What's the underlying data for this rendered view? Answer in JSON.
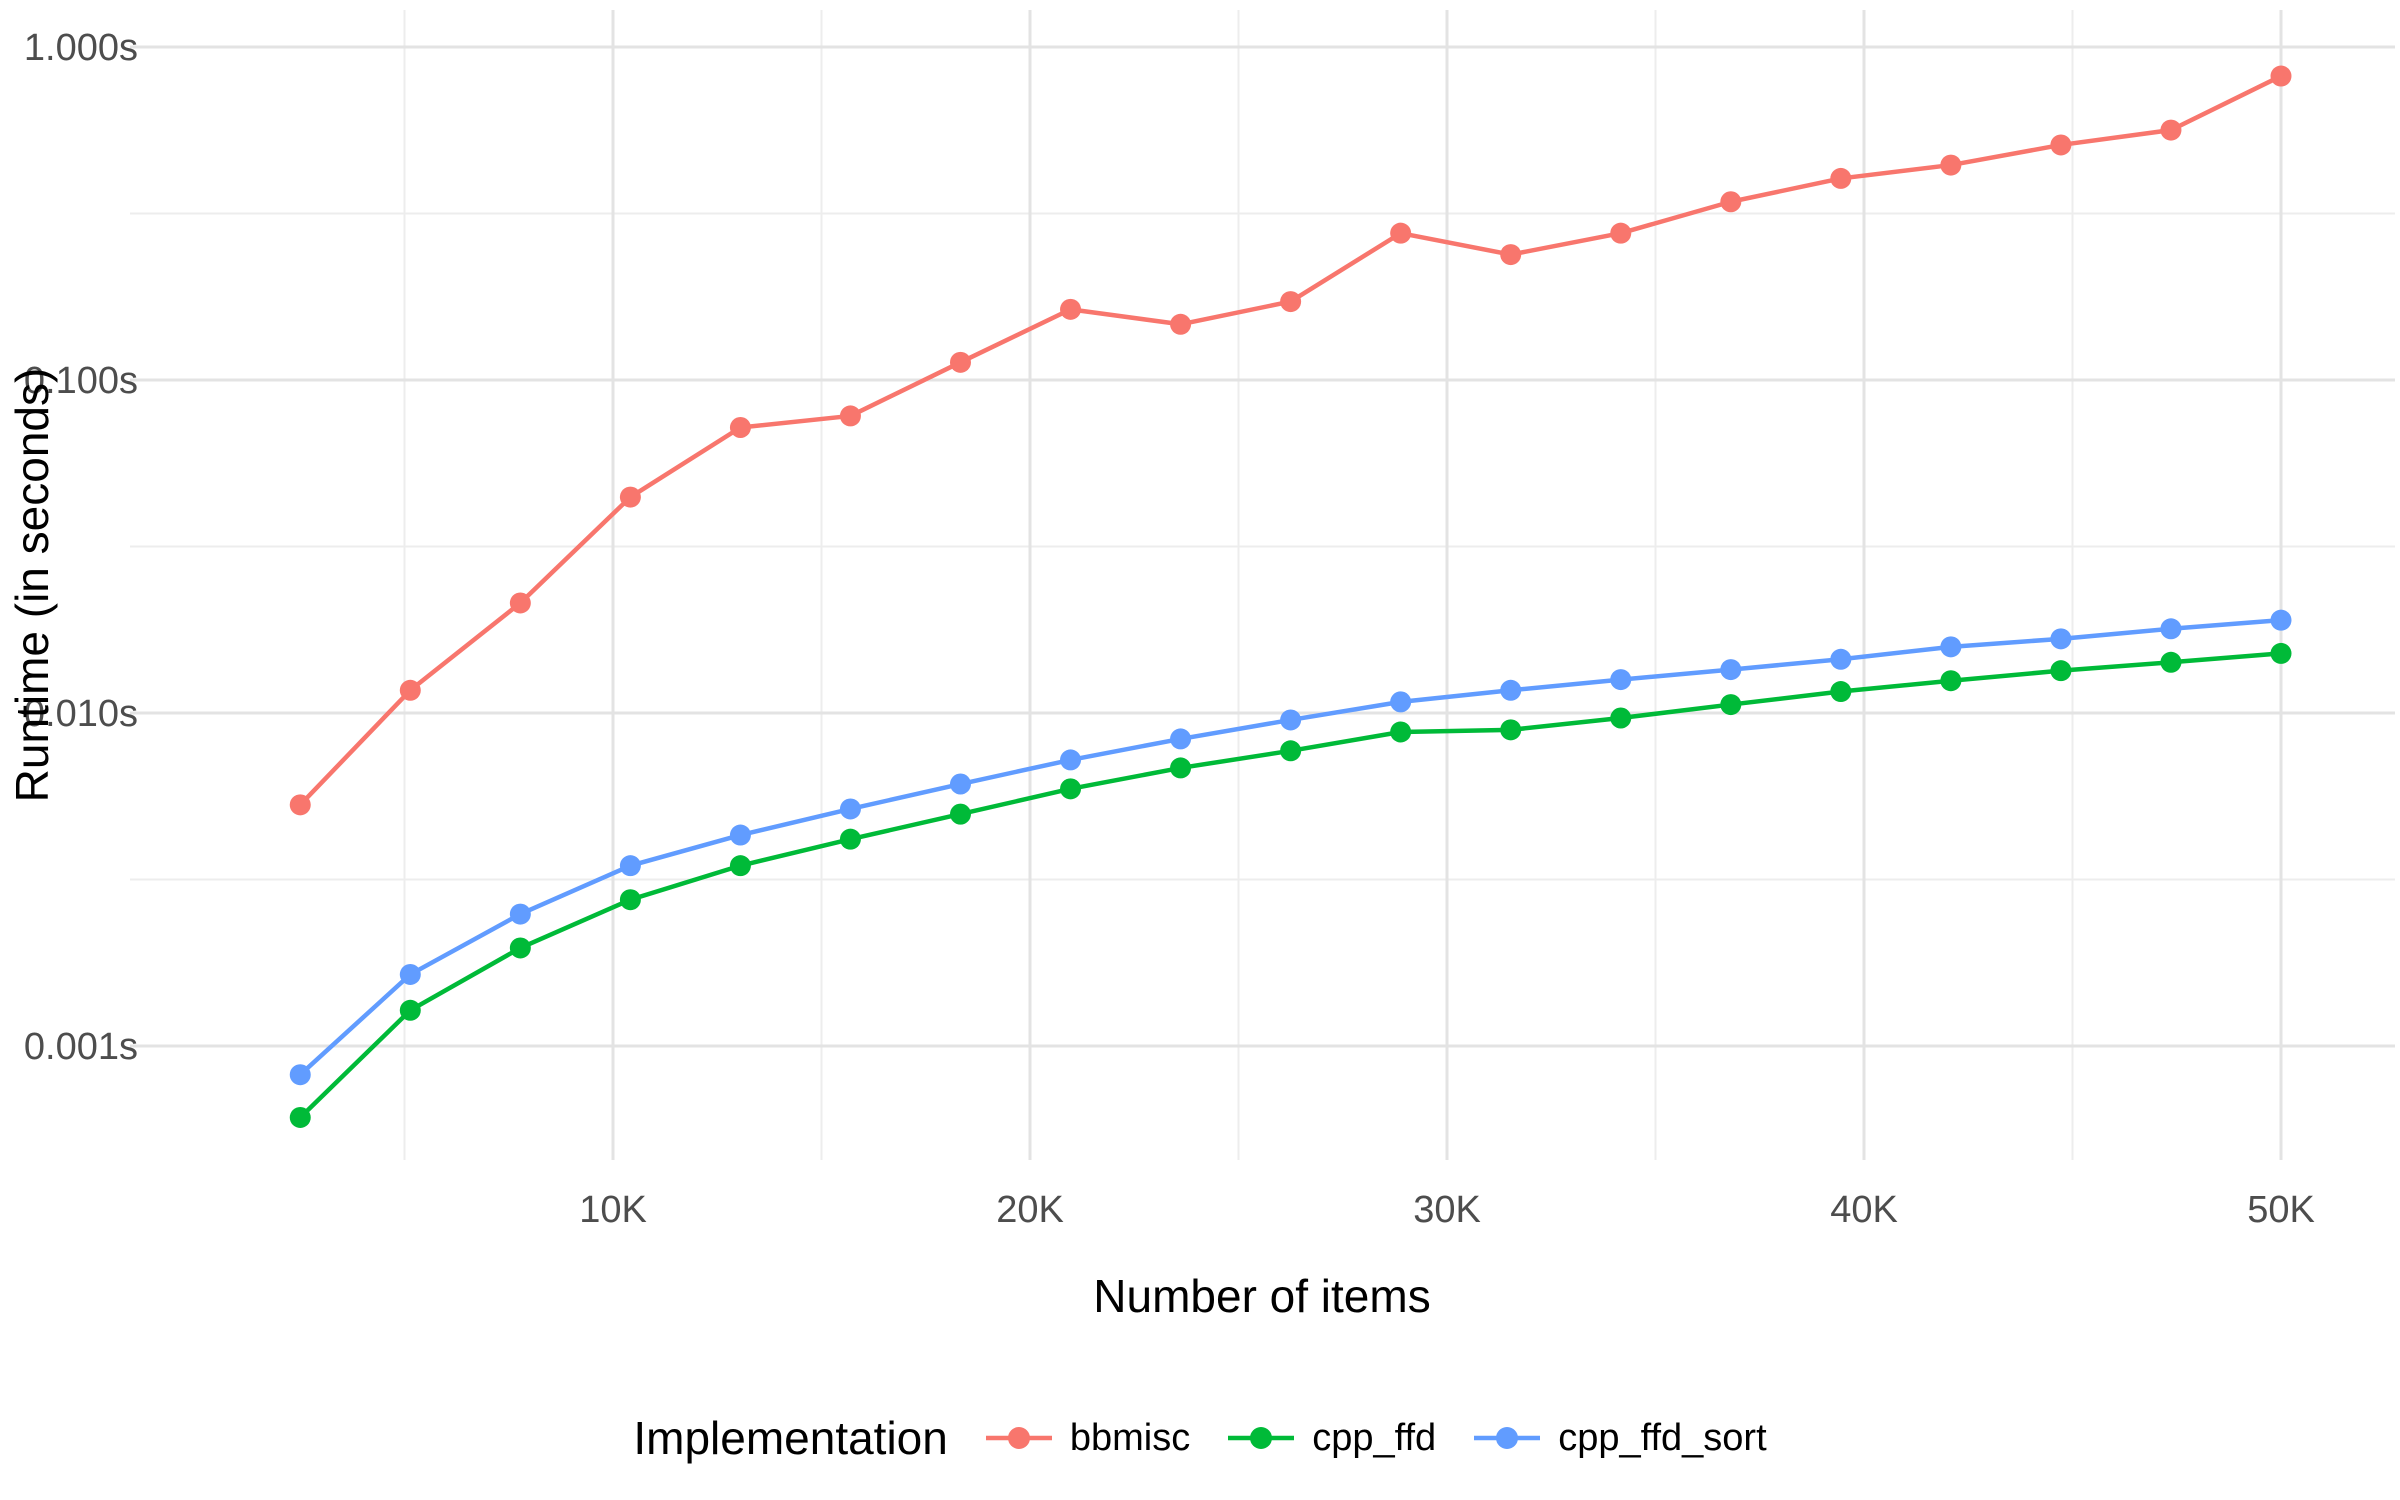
{
  "chart_data": {
    "type": "line",
    "title": "",
    "xlabel": "Number of items",
    "ylabel": "Runtime (in seconds)",
    "x": [
      2500,
      5139,
      7778,
      10417,
      13056,
      15694,
      18333,
      20972,
      23611,
      26250,
      28889,
      31528,
      34167,
      36806,
      39444,
      42083,
      44722,
      47361,
      50000
    ],
    "series": [
      {
        "name": "bbmisc",
        "color": "#F8766D",
        "values": [
          0.0053,
          0.0117,
          0.0214,
          0.0445,
          0.072,
          0.078,
          0.113,
          0.163,
          0.147,
          0.172,
          0.276,
          0.238,
          0.276,
          0.343,
          0.403,
          0.442,
          0.508,
          0.563,
          0.818
        ]
      },
      {
        "name": "cpp_ffd",
        "color": "#00BA38",
        "values": [
          0.00061,
          0.00128,
          0.00197,
          0.00275,
          0.00348,
          0.00418,
          0.00497,
          0.00592,
          0.00684,
          0.0077,
          0.00877,
          0.0089,
          0.00966,
          0.0106,
          0.0116,
          0.0125,
          0.0134,
          0.0142,
          0.0151
        ]
      },
      {
        "name": "cpp_ffd_sort",
        "color": "#619CFF",
        "values": [
          0.00082,
          0.00164,
          0.00249,
          0.00348,
          0.0043,
          0.00515,
          0.00612,
          0.00723,
          0.00836,
          0.00953,
          0.0108,
          0.0117,
          0.0126,
          0.0135,
          0.0145,
          0.0158,
          0.0167,
          0.0179,
          0.019
        ]
      }
    ],
    "x_axis": {
      "scale": "linear",
      "major_ticks": [
        {
          "value": 10000,
          "label": "10K"
        },
        {
          "value": 20000,
          "label": "20K"
        },
        {
          "value": 30000,
          "label": "30K"
        },
        {
          "value": 40000,
          "label": "40K"
        },
        {
          "value": 50000,
          "label": "50K"
        }
      ],
      "minor_ticks": [
        5000,
        15000,
        25000,
        35000,
        45000
      ]
    },
    "y_axis": {
      "scale": "log10",
      "major_ticks": [
        {
          "value": 1.0,
          "label": "1.000s"
        },
        {
          "value": 0.1,
          "label": "0.100s"
        },
        {
          "value": 0.01,
          "label": "0.010s"
        },
        {
          "value": 0.001,
          "label": "0.001s"
        }
      ],
      "minor_ticks": [
        0.3162,
        0.03162,
        0.003162
      ]
    },
    "legend": {
      "title": "Implementation",
      "position": "bottom"
    },
    "grid": {
      "major_color": "#E3E3E3",
      "minor_color": "#EDEDED",
      "show": true
    },
    "background": "#FFFFFF",
    "tick_text_color": "#4d4d4d",
    "title_text_color": "#000000"
  }
}
